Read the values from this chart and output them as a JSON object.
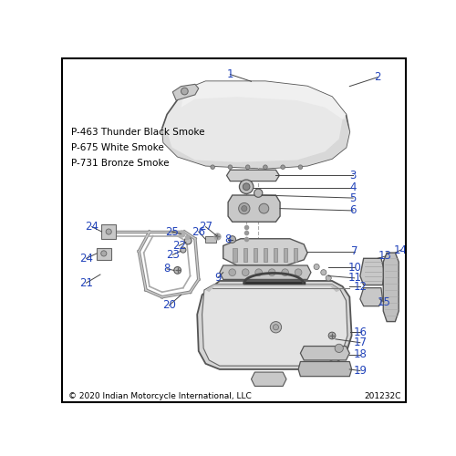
{
  "background_color": "#ffffff",
  "border_color": "#000000",
  "label_color": "#2244bb",
  "text_color": "#000000",
  "copyright_text": "© 2020 Indian Motorcycle International, LLC",
  "doc_number": "201232C",
  "color_notes": [
    "P-463 Thunder Black Smoke",
    "P-675 White Smoke",
    "P-731 Bronze Smoke"
  ]
}
